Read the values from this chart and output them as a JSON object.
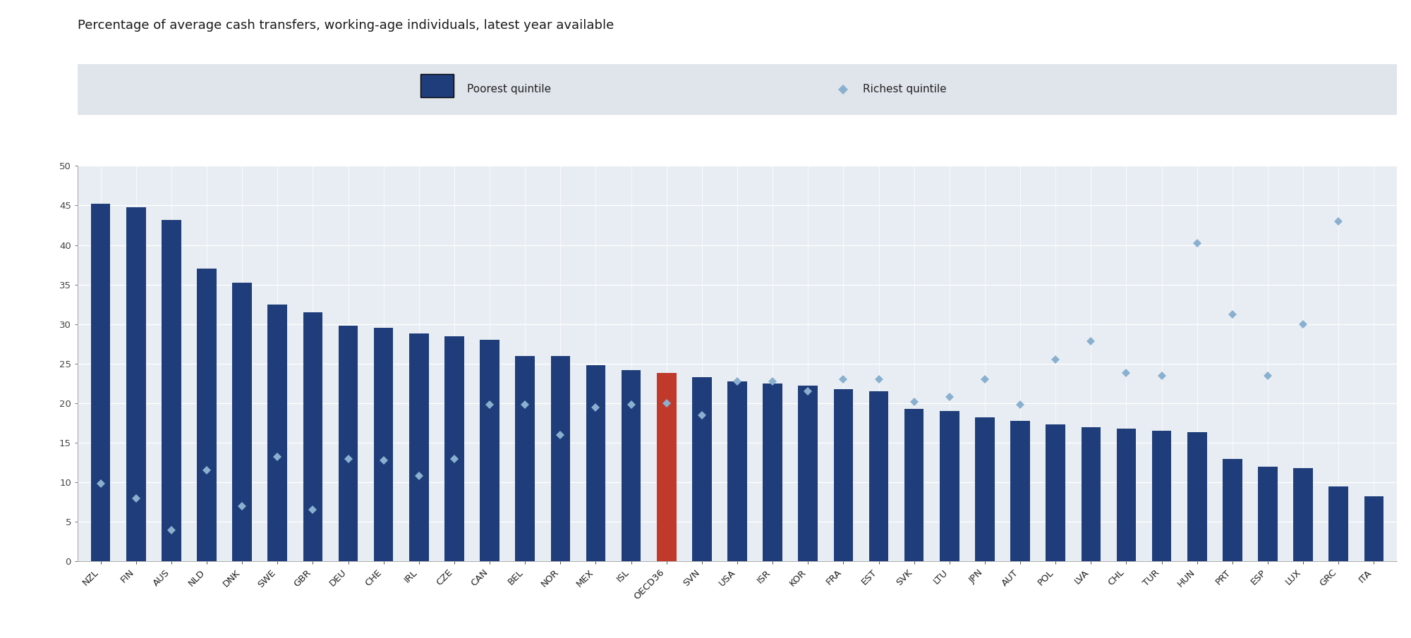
{
  "title": "Percentage of average cash transfers, working-age individuals, latest year available",
  "categories": [
    "NZL",
    "FIN",
    "AUS",
    "NLD",
    "DNK",
    "SWE",
    "GBR",
    "DEU",
    "CHE",
    "IRL",
    "CZE",
    "CAN",
    "BEL",
    "NOR",
    "MEX",
    "ISL",
    "OECD36",
    "SVN",
    "USA",
    "ISR",
    "KOR",
    "FRA",
    "EST",
    "SVK",
    "LTU",
    "JPN",
    "AUT",
    "POL",
    "LVA",
    "CHL",
    "TUR",
    "HUN",
    "PRT",
    "ESP",
    "LUX",
    "GRC",
    "ITA"
  ],
  "bar_values": [
    45.2,
    44.8,
    43.2,
    37.0,
    35.2,
    32.5,
    31.5,
    29.8,
    29.5,
    28.8,
    28.5,
    28.0,
    26.0,
    26.0,
    24.8,
    24.2,
    23.8,
    23.3,
    22.8,
    22.5,
    22.2,
    21.8,
    21.5,
    19.3,
    19.0,
    18.2,
    17.8,
    17.3,
    17.0,
    16.8,
    16.5,
    16.3,
    13.0,
    12.0,
    11.8,
    9.5,
    8.2
  ],
  "diamond_values": [
    9.8,
    8.0,
    4.0,
    11.5,
    7.0,
    13.2,
    6.5,
    13.0,
    12.8,
    10.8,
    13.0,
    19.8,
    19.8,
    16.0,
    19.5,
    19.8,
    20.0,
    18.5,
    22.8,
    22.8,
    21.5,
    23.0,
    23.0,
    20.2,
    20.8,
    23.0,
    19.8,
    25.5,
    27.8,
    23.8,
    23.5,
    40.2,
    31.2,
    23.5,
    30.0,
    43.0,
    null
  ],
  "bar_colors": [
    "#1f3d7a",
    "#1f3d7a",
    "#1f3d7a",
    "#1f3d7a",
    "#1f3d7a",
    "#1f3d7a",
    "#1f3d7a",
    "#1f3d7a",
    "#1f3d7a",
    "#1f3d7a",
    "#1f3d7a",
    "#1f3d7a",
    "#1f3d7a",
    "#1f3d7a",
    "#1f3d7a",
    "#1f3d7a",
    "#c0392b",
    "#1f3d7a",
    "#1f3d7a",
    "#1f3d7a",
    "#1f3d7a",
    "#1f3d7a",
    "#1f3d7a",
    "#1f3d7a",
    "#1f3d7a",
    "#1f3d7a",
    "#1f3d7a",
    "#1f3d7a",
    "#1f3d7a",
    "#1f3d7a",
    "#1f3d7a",
    "#1f3d7a",
    "#1f3d7a",
    "#1f3d7a",
    "#1f3d7a",
    "#1f3d7a",
    "#1f3d7a"
  ],
  "diamond_color": "#8ab0d0",
  "ylim": [
    0,
    50
  ],
  "yticks": [
    0,
    5,
    10,
    15,
    20,
    25,
    30,
    35,
    40,
    45,
    50
  ],
  "legend_bar_color": "#1f3d7a",
  "legend_diamond_color": "#8ab0d0",
  "legend_bar_label": "Poorest quintile",
  "legend_diamond_label": "Richest quintile",
  "fig_bg_color": "#ffffff",
  "plot_bg_color": "#e8edf3",
  "legend_bg_color": "#e0e5ec",
  "title_fontsize": 13,
  "tick_fontsize": 9.5,
  "legend_fontsize": 11,
  "bar_width": 0.55
}
